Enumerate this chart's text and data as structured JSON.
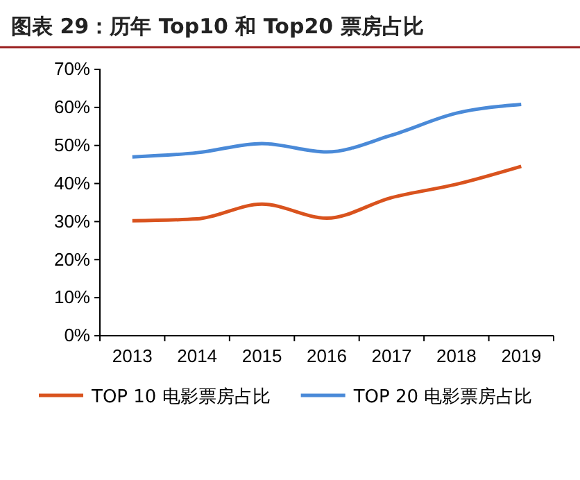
{
  "chart_data": {
    "type": "line",
    "title": "图表 29：历年 Top10 和 Top20 票房占比",
    "categories": [
      "2013",
      "2014",
      "2015",
      "2016",
      "2017",
      "2018",
      "2019"
    ],
    "series": [
      {
        "name": "TOP 10 电影票房占比",
        "color": "#d9531e",
        "values": [
          30.2,
          30.7,
          34.6,
          30.9,
          36.3,
          39.8,
          44.5
        ]
      },
      {
        "name": "TOP 20 电影票房占比",
        "color": "#4a8ad8",
        "values": [
          47,
          48.1,
          50.5,
          48.3,
          52.7,
          58.5,
          60.8
        ]
      }
    ],
    "ylim": [
      0,
      70
    ],
    "yticks": [
      {
        "value": 0,
        "label": "0%"
      },
      {
        "value": 10,
        "label": "10%"
      },
      {
        "value": 20,
        "label": "20%"
      },
      {
        "value": 30,
        "label": "30%"
      },
      {
        "value": 40,
        "label": "40%"
      },
      {
        "value": 50,
        "label": "50%"
      },
      {
        "value": 60,
        "label": "60%"
      },
      {
        "value": 70,
        "label": "70%"
      }
    ],
    "grid": false,
    "legend": "bottom",
    "marker": "none",
    "line_style": "solid"
  }
}
